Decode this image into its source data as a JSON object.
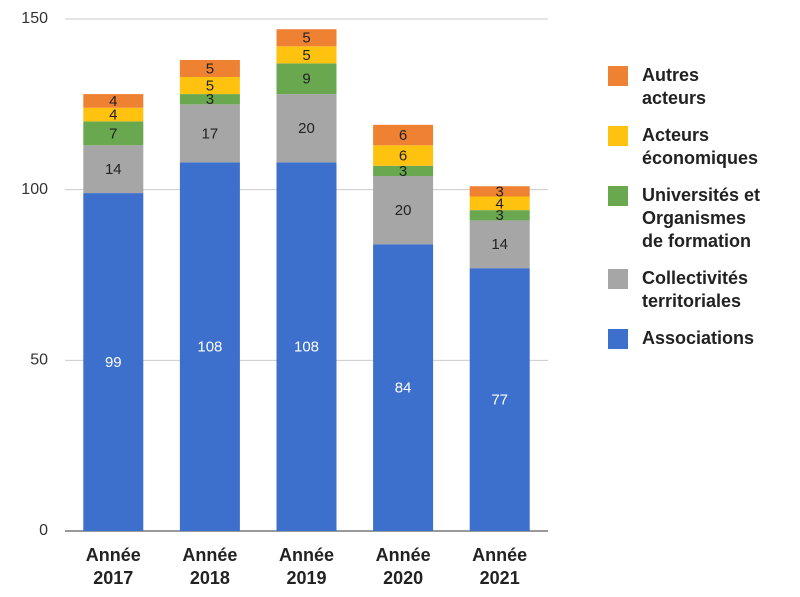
{
  "chart_data": {
    "type": "stacked_bar",
    "categories": [
      "Année 2017",
      "Année 2018",
      "Année 2019",
      "Année 2020",
      "Année 2021"
    ],
    "series": [
      {
        "name": "Associations",
        "color": "#3d6fcc",
        "values": [
          99,
          108,
          108,
          84,
          77
        ]
      },
      {
        "name": "Collectivités territoriales",
        "color": "#a6a6a6",
        "values": [
          14,
          17,
          20,
          20,
          14
        ]
      },
      {
        "name": "Universités et Organismes de formation",
        "color": "#6aa84f",
        "values": [
          7,
          3,
          9,
          3,
          3
        ]
      },
      {
        "name": "Acteurs économiques",
        "color": "#ffc20e",
        "values": [
          4,
          5,
          5,
          6,
          4
        ]
      },
      {
        "name": "Autres acteurs",
        "color": "#ef8133",
        "values": [
          4,
          5,
          5,
          6,
          3
        ]
      }
    ],
    "ylim": [
      0,
      150
    ],
    "yticks": [
      0,
      50,
      100,
      150
    ],
    "grid": true,
    "legend": "right"
  }
}
